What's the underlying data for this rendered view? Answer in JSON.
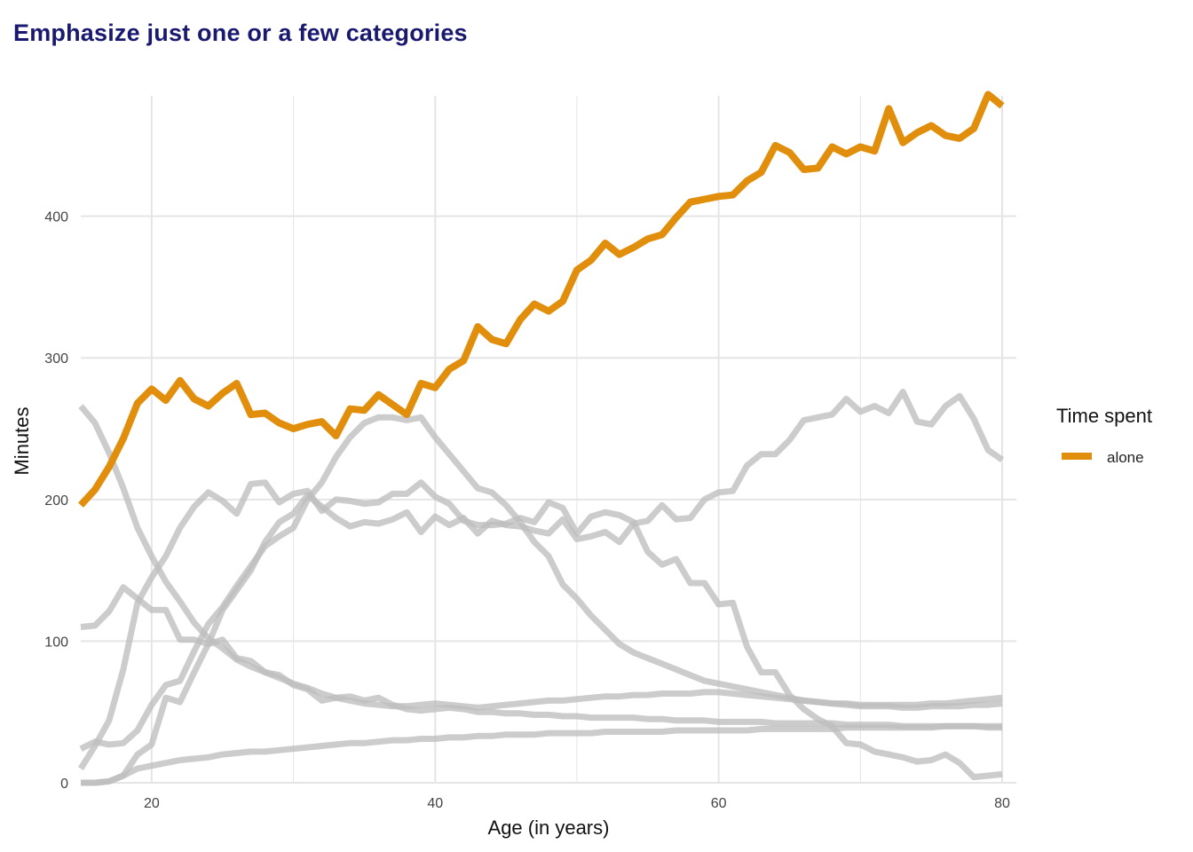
{
  "title": "Emphasize just one or a few categories",
  "colors": {
    "highlight": "#E08E0B",
    "muted": "#BEBEBE",
    "title": "#191970",
    "grid": "#E5E5E5"
  },
  "chart_data": {
    "type": "line",
    "title": "Emphasize just one or a few categories",
    "xlabel": "Age (in years)",
    "ylabel": "Minutes",
    "xlim": [
      15,
      81
    ],
    "ylim": [
      0,
      485
    ],
    "x_ticks": [
      20,
      40,
      60,
      80
    ],
    "y_ticks": [
      0,
      100,
      200,
      300,
      400
    ],
    "grid": true,
    "legend": {
      "title": "Time spent",
      "position": "right",
      "entries": [
        "alone"
      ]
    },
    "x": [
      15,
      16,
      17,
      18,
      19,
      20,
      21,
      22,
      23,
      24,
      25,
      26,
      27,
      28,
      29,
      30,
      31,
      32,
      33,
      34,
      35,
      36,
      37,
      38,
      39,
      40,
      41,
      42,
      43,
      44,
      45,
      46,
      47,
      48,
      49,
      50,
      51,
      52,
      53,
      54,
      55,
      56,
      57,
      58,
      59,
      60,
      61,
      62,
      63,
      64,
      65,
      66,
      67,
      68,
      69,
      70,
      71,
      72,
      73,
      74,
      75,
      76,
      77,
      78,
      79,
      80
    ],
    "series": [
      {
        "name": "alone",
        "highlight": true,
        "values": [
          196,
          207,
          223,
          243,
          268,
          278,
          270,
          284,
          271,
          266,
          275,
          282,
          260,
          261,
          254,
          250,
          253,
          255,
          245,
          264,
          263,
          274,
          267,
          260,
          282,
          279,
          292,
          298,
          322,
          313,
          310,
          327,
          338,
          333,
          340,
          362,
          369,
          381,
          373,
          378,
          384,
          387,
          399,
          410,
          412,
          414,
          415,
          425,
          431,
          450,
          445,
          433,
          434,
          449,
          444,
          449,
          446,
          476,
          452,
          459,
          464,
          457,
          455,
          462,
          486,
          478
        ]
      },
      {
        "values": [
          266,
          254,
          233,
          208,
          180,
          160,
          142,
          128,
          113,
          102,
          95,
          87,
          82,
          78,
          74,
          70,
          67,
          63,
          60,
          58,
          56,
          55,
          54,
          54,
          55,
          56,
          55,
          54,
          53,
          54,
          55,
          56,
          57,
          58,
          58,
          59,
          60,
          61,
          61,
          62,
          62,
          63,
          63,
          63,
          64,
          64,
          63,
          62,
          61,
          60,
          59,
          58,
          57,
          56,
          55,
          54,
          54,
          54,
          53,
          53,
          54,
          54,
          54,
          55,
          55,
          56
        ]
      },
      {
        "values": [
          24,
          29,
          27,
          28,
          37,
          55,
          69,
          72,
          93,
          112,
          124,
          139,
          153,
          167,
          174,
          180,
          200,
          212,
          230,
          244,
          254,
          258,
          258,
          256,
          258,
          244,
          232,
          220,
          208,
          205,
          196,
          184,
          170,
          160,
          140,
          130,
          118,
          108,
          98,
          92,
          88,
          84,
          80,
          76,
          72,
          70,
          68,
          66,
          64,
          62,
          60,
          58,
          57,
          56,
          56,
          55,
          55,
          55,
          55,
          55,
          56,
          56,
          57,
          58,
          59,
          60
        ]
      },
      {
        "values": [
          110,
          111,
          121,
          138,
          130,
          122,
          122,
          101,
          101,
          98,
          101,
          88,
          86,
          78,
          76,
          69,
          66,
          58,
          60,
          61,
          58,
          60,
          55,
          52,
          51,
          52,
          53,
          52,
          50,
          50,
          49,
          49,
          48,
          48,
          47,
          47,
          46,
          46,
          46,
          46,
          45,
          45,
          44,
          44,
          44,
          43,
          43,
          43,
          43,
          42,
          42,
          42,
          42,
          42,
          41,
          41,
          41,
          41,
          40,
          40,
          40,
          40,
          40,
          40,
          39,
          39
        ]
      },
      {
        "values": [
          0,
          0,
          1,
          5,
          20,
          27,
          60,
          57,
          78,
          98,
          122,
          136,
          150,
          170,
          184,
          190,
          203,
          195,
          187,
          181,
          184,
          183,
          186,
          191,
          177,
          188,
          182,
          187,
          176,
          185,
          182,
          181,
          178,
          176,
          186,
          172,
          174,
          177,
          170,
          183,
          185,
          196,
          186,
          187,
          200,
          205,
          206,
          224,
          232,
          232,
          242,
          256,
          258,
          260,
          271,
          262,
          266,
          261,
          276,
          255,
          253,
          266,
          273,
          257,
          235,
          228
        ]
      },
      {
        "values": [
          10,
          26,
          44,
          80,
          127,
          145,
          160,
          180,
          195,
          205,
          199,
          190,
          211,
          212,
          198,
          204,
          206,
          192,
          200,
          199,
          197,
          198,
          204,
          204,
          212,
          202,
          197,
          185,
          182,
          182,
          183,
          187,
          184,
          198,
          194,
          176,
          188,
          191,
          189,
          184,
          163,
          154,
          158,
          141,
          141,
          126,
          127,
          96,
          78,
          78,
          62,
          52,
          45,
          40,
          28,
          27,
          22,
          20,
          18,
          15,
          16,
          20,
          14,
          4,
          5,
          6
        ]
      },
      {
        "values": [
          0,
          0,
          1,
          5,
          10,
          12,
          14,
          16,
          17,
          18,
          20,
          21,
          22,
          22,
          23,
          24,
          25,
          26,
          27,
          28,
          28,
          29,
          30,
          30,
          31,
          31,
          32,
          32,
          33,
          33,
          34,
          34,
          34,
          35,
          35,
          35,
          35,
          36,
          36,
          36,
          36,
          36,
          37,
          37,
          37,
          37,
          37,
          37,
          38,
          38,
          38,
          38,
          38,
          38,
          39,
          39,
          39,
          39,
          39,
          39,
          39,
          40,
          40,
          40,
          40,
          40
        ]
      }
    ]
  }
}
